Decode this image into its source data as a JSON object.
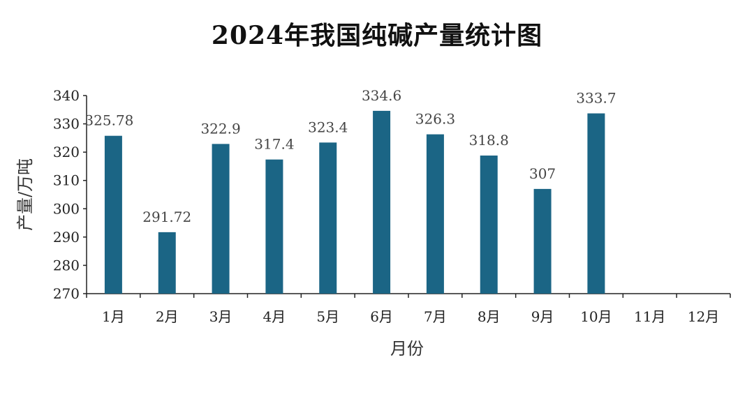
{
  "chart_data": {
    "type": "bar",
    "title": "2024年我国纯碱产量统计图",
    "xlabel": "月份",
    "ylabel": "产量/万吨",
    "categories": [
      "1月",
      "2月",
      "3月",
      "4月",
      "5月",
      "6月",
      "7月",
      "8月",
      "9月",
      "10月",
      "11月",
      "12月"
    ],
    "values": [
      325.78,
      291.72,
      322.9,
      317.4,
      323.4,
      334.6,
      326.3,
      318.8,
      307,
      333.7,
      null,
      null
    ],
    "data_labels": [
      "325.78",
      "291.72",
      "322.9",
      "317.4",
      "323.4",
      "334.6",
      "326.3",
      "318.8",
      "307",
      "333.7",
      "",
      ""
    ],
    "ylim": [
      270,
      340
    ],
    "yticks": [
      270,
      280,
      290,
      300,
      310,
      320,
      330,
      340
    ],
    "bar_color": "#1b6585",
    "grid": false,
    "legend": "none"
  }
}
